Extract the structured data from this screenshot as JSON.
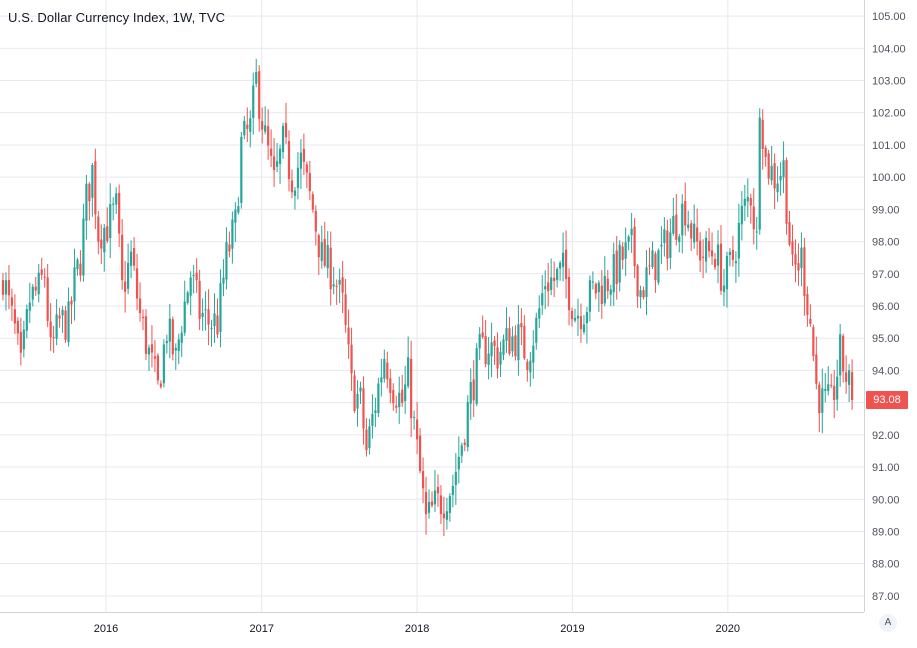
{
  "title": "U.S. Dollar Currency Index, 1W, TVC",
  "last_price": {
    "value": 93.08,
    "label": "93.08"
  },
  "auto_scale_label": "A",
  "colors": {
    "up": "#26a69a",
    "down": "#ef5350",
    "grid": "#e6e9ef",
    "axis_text": "#50535e",
    "last_price_badge": "#ef5350"
  },
  "chart_data": {
    "type": "candlestick",
    "title": "U.S. Dollar Currency Index, 1W, TVC",
    "x_ticks": [
      "2016",
      "2017",
      "2018",
      "2019",
      "2020"
    ],
    "y_ticks": [
      "87.00",
      "88.00",
      "89.00",
      "90.00",
      "91.00",
      "92.00",
      "93.00",
      "94.00",
      "95.00",
      "96.00",
      "97.00",
      "98.00",
      "99.00",
      "100.00",
      "101.00",
      "102.00",
      "103.00",
      "104.00",
      "105.00"
    ],
    "ylim": [
      86.5,
      105.5
    ],
    "xlim": [
      "2015-04-27",
      "2020-11-16"
    ],
    "grid": true,
    "approx_weekly_close_series": [
      [
        "2015-05-04",
        97.0
      ],
      [
        "2015-05-18",
        96.0
      ],
      [
        "2015-06-01",
        95.2
      ],
      [
        "2015-06-15",
        94.0
      ],
      [
        "2015-07-06",
        96.2
      ],
      [
        "2015-07-27",
        96.5
      ],
      [
        "2015-08-10",
        97.0
      ],
      [
        "2015-08-24",
        94.5
      ],
      [
        "2015-09-14",
        95.5
      ],
      [
        "2015-10-05",
        95.5
      ],
      [
        "2015-10-19",
        96.7
      ],
      [
        "2015-11-02",
        97.5
      ],
      [
        "2015-11-16",
        99.3
      ],
      [
        "2015-11-30",
        100.2
      ],
      [
        "2015-12-14",
        98.3
      ],
      [
        "2016-01-04",
        98.5
      ],
      [
        "2016-01-25",
        99.0
      ],
      [
        "2016-02-08",
        96.5
      ],
      [
        "2016-02-29",
        97.5
      ],
      [
        "2016-03-21",
        95.7
      ],
      [
        "2016-04-11",
        94.5
      ],
      [
        "2016-05-02",
        93.4
      ],
      [
        "2016-05-23",
        95.3
      ],
      [
        "2016-06-13",
        94.3
      ],
      [
        "2016-06-27",
        95.6
      ],
      [
        "2016-07-18",
        97.0
      ],
      [
        "2016-08-08",
        95.8
      ],
      [
        "2016-08-29",
        95.5
      ],
      [
        "2016-09-19",
        95.5
      ],
      [
        "2016-10-10",
        97.5
      ],
      [
        "2016-10-31",
        98.5
      ],
      [
        "2016-11-14",
        101.0
      ],
      [
        "2016-12-05",
        101.5
      ],
      [
        "2016-12-19",
        103.0
      ],
      [
        "2017-01-09",
        101.2
      ],
      [
        "2017-01-30",
        99.8
      ],
      [
        "2017-02-20",
        101.0
      ],
      [
        "2017-03-13",
        100.0
      ],
      [
        "2017-04-03",
        100.5
      ],
      [
        "2017-05-01",
        99.0
      ],
      [
        "2017-05-22",
        97.5
      ],
      [
        "2017-06-19",
        97.0
      ],
      [
        "2017-07-10",
        96.0
      ],
      [
        "2017-07-31",
        93.5
      ],
      [
        "2017-08-21",
        93.0
      ],
      [
        "2017-09-04",
        91.5
      ],
      [
        "2017-09-25",
        93.0
      ],
      [
        "2017-10-16",
        94.5
      ],
      [
        "2017-11-06",
        93.5
      ],
      [
        "2017-11-27",
        93.0
      ],
      [
        "2017-12-11",
        93.8
      ],
      [
        "2018-01-01",
        91.5
      ],
      [
        "2018-01-22",
        89.3
      ],
      [
        "2018-02-12",
        89.8
      ],
      [
        "2018-03-05",
        90.0
      ],
      [
        "2018-03-26",
        90.5
      ],
      [
        "2018-04-16",
        91.8
      ],
      [
        "2018-05-07",
        93.3
      ],
      [
        "2018-05-28",
        94.5
      ],
      [
        "2018-06-18",
        94.8
      ],
      [
        "2018-07-09",
        94.5
      ],
      [
        "2018-08-06",
        95.0
      ],
      [
        "2018-08-27",
        95.0
      ],
      [
        "2018-09-17",
        94.5
      ],
      [
        "2018-10-08",
        95.4
      ],
      [
        "2018-10-29",
        96.8
      ],
      [
        "2018-11-19",
        96.8
      ],
      [
        "2018-12-10",
        97.1
      ],
      [
        "2019-01-07",
        95.8
      ],
      [
        "2019-01-28",
        95.9
      ],
      [
        "2019-02-18",
        96.5
      ],
      [
        "2019-03-11",
        96.6
      ],
      [
        "2019-04-08",
        97.0
      ],
      [
        "2019-04-29",
        97.5
      ],
      [
        "2019-05-20",
        97.8
      ],
      [
        "2019-06-10",
        96.5
      ],
      [
        "2019-07-08",
        97.2
      ],
      [
        "2019-08-05",
        97.8
      ],
      [
        "2019-08-26",
        98.5
      ],
      [
        "2019-09-23",
        99.1
      ],
      [
        "2019-10-14",
        98.0
      ],
      [
        "2019-11-04",
        97.6
      ],
      [
        "2019-12-02",
        97.7
      ],
      [
        "2019-12-23",
        96.7
      ],
      [
        "2020-01-13",
        97.5
      ],
      [
        "2020-02-03",
        98.8
      ],
      [
        "2020-02-24",
        99.5
      ],
      [
        "2020-03-09",
        98.0
      ],
      [
        "2020-03-16",
        102.5
      ],
      [
        "2020-03-30",
        100.5
      ],
      [
        "2020-04-20",
        100.0
      ],
      [
        "2020-05-11",
        100.3
      ],
      [
        "2020-06-01",
        97.0
      ],
      [
        "2020-06-22",
        97.5
      ],
      [
        "2020-07-13",
        95.5
      ],
      [
        "2020-07-27",
        93.5
      ],
      [
        "2020-08-10",
        93.0
      ],
      [
        "2020-08-31",
        92.9
      ],
      [
        "2020-09-21",
        94.5
      ],
      [
        "2020-10-12",
        93.5
      ],
      [
        "2020-10-19",
        93.08
      ]
    ]
  }
}
